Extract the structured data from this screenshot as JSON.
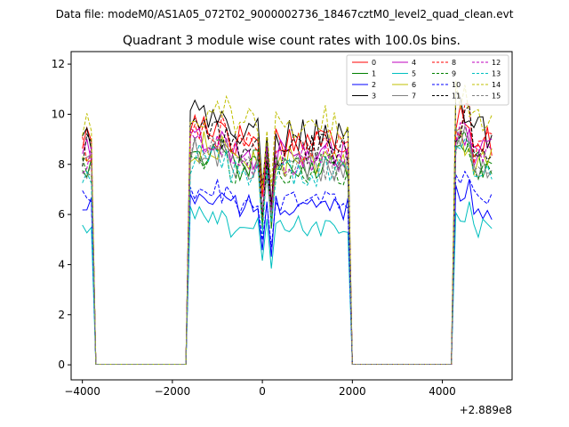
{
  "chart_data": {
    "type": "line",
    "suptitle": "Data file: modeM0/AS1A05_072T02_9000002736_18467cztM0_level2_quad_clean.evt",
    "title": "Quadrant 3 module wise count rates with 100.0s bins.",
    "xlabel": "",
    "ylabel": "",
    "offset_label": "+2.889e8",
    "xlim": [
      -4250,
      5550
    ],
    "ylim": [
      -0.6,
      12.5
    ],
    "x_ticks": [
      -4000,
      -2000,
      0,
      2000,
      4000
    ],
    "x_tick_labels": [
      "−4000",
      "−2000",
      "0",
      "2000",
      "4000"
    ],
    "y_ticks": [
      0,
      2,
      4,
      6,
      8,
      10,
      12
    ],
    "y_tick_labels": [
      "0",
      "2",
      "4",
      "6",
      "8",
      "10",
      "12"
    ],
    "legend_location": "upper right",
    "series": [
      {
        "name": "0",
        "color": "#ff0000",
        "dash": "solid",
        "base": 9.0
      },
      {
        "name": "1",
        "color": "#008000",
        "dash": "solid",
        "base": 8.0
      },
      {
        "name": "2",
        "color": "#0000ff",
        "dash": "solid",
        "base": 6.3
      },
      {
        "name": "3",
        "color": "#000000",
        "dash": "solid",
        "base": 9.2
      },
      {
        "name": "4",
        "color": "#bf00bf",
        "dash": "solid",
        "base": 8.4
      },
      {
        "name": "5",
        "color": "#00bfbf",
        "dash": "solid",
        "base": 5.5
      },
      {
        "name": "6",
        "color": "#bfbf00",
        "dash": "solid",
        "base": 8.1
      },
      {
        "name": "7",
        "color": "#808080",
        "dash": "solid",
        "base": 7.9
      },
      {
        "name": "8",
        "color": "#ff0000",
        "dash": "dashed",
        "base": 8.7
      },
      {
        "name": "9",
        "color": "#008000",
        "dash": "dashed",
        "base": 7.8
      },
      {
        "name": "10",
        "color": "#0000ff",
        "dash": "dashed",
        "base": 6.5
      },
      {
        "name": "11",
        "color": "#000000",
        "dash": "dashed",
        "base": 8.6
      },
      {
        "name": "12",
        "color": "#bf00bf",
        "dash": "dashed",
        "base": 8.2
      },
      {
        "name": "13",
        "color": "#00bfbf",
        "dash": "dashed",
        "base": 7.7
      },
      {
        "name": "14",
        "color": "#bfbf00",
        "dash": "dashed",
        "base": 9.6
      },
      {
        "name": "15",
        "color": "#808080",
        "dash": "dashed",
        "base": 8.0
      }
    ],
    "active_segments": [
      {
        "start": -4000,
        "end": -3800
      },
      {
        "start": -1600,
        "end": 100
      },
      {
        "start": 200,
        "end": 1950
      },
      {
        "start": 4250,
        "end": 5150
      }
    ],
    "dip": {
      "x": 100,
      "factor": 0.22
    },
    "bin_size": 100
  }
}
